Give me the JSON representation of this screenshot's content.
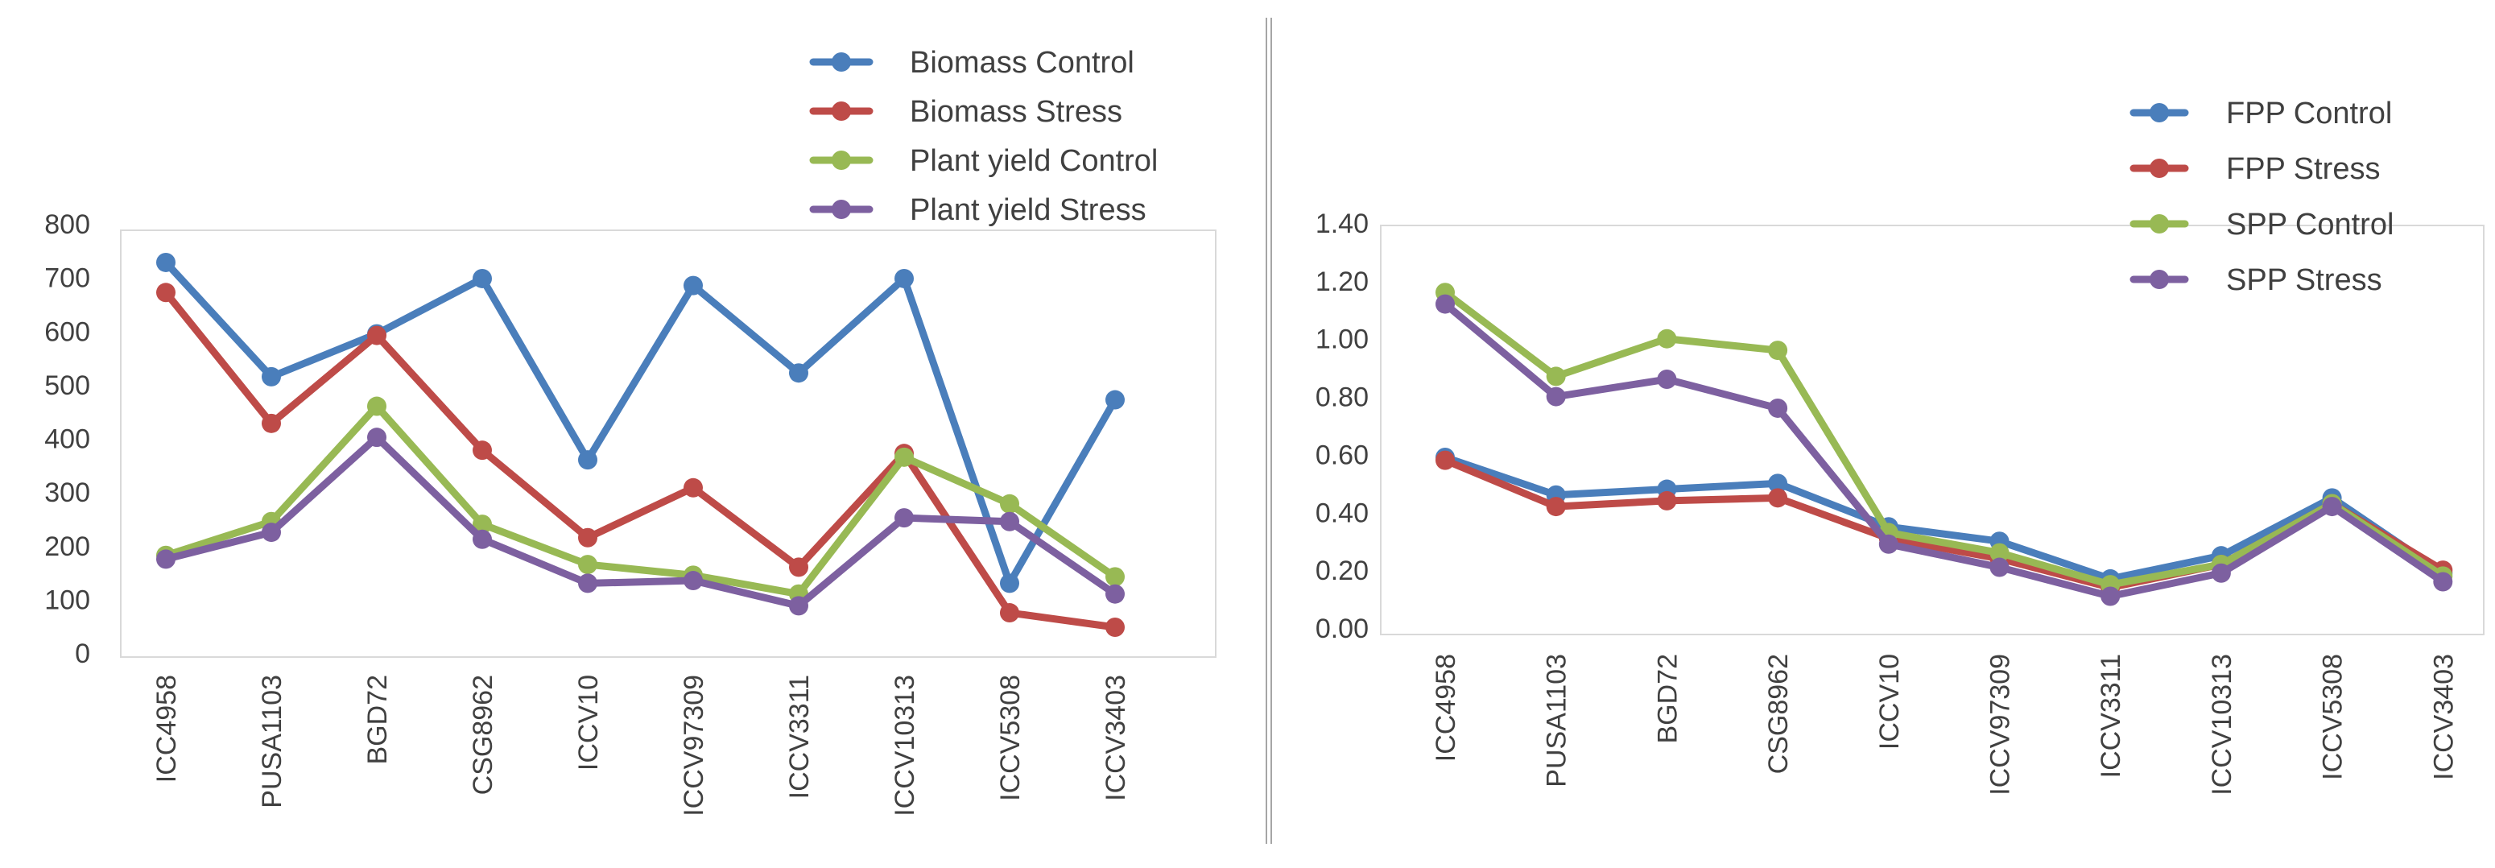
{
  "chart_data": [
    {
      "type": "line",
      "title": "",
      "xlabel": "",
      "ylabel": "",
      "ylim": [
        0,
        800
      ],
      "y_ticks": [
        "800",
        "700",
        "600",
        "500",
        "400",
        "300",
        "200",
        "100",
        "0"
      ],
      "categories": [
        "ICC4958",
        "PUSA1103",
        "BGD72",
        "CSG8962",
        "ICCV10",
        "ICCV97309",
        "ICCV3311",
        "ICCV10313",
        "ICCV5308",
        "ICCV3403"
      ],
      "legend_position": "top-right",
      "grid": false,
      "series": [
        {
          "name": "Biomass Control",
          "color": "#4A7EBB",
          "values": [
            728,
            515,
            595,
            698,
            360,
            685,
            522,
            698,
            130,
            472
          ]
        },
        {
          "name": "Biomass Stress",
          "color": "#BE4B48",
          "values": [
            672,
            428,
            592,
            378,
            215,
            308,
            160,
            372,
            75,
            48
          ]
        },
        {
          "name": "Plant yield Control",
          "color": "#98B954",
          "values": [
            182,
            245,
            460,
            240,
            165,
            145,
            110,
            365,
            278,
            142
          ]
        },
        {
          "name": "Plant yield Stress",
          "color": "#7D60A0",
          "values": [
            175,
            225,
            402,
            212,
            130,
            135,
            88,
            252,
            245,
            110
          ]
        }
      ]
    },
    {
      "type": "line",
      "title": "",
      "xlabel": "",
      "ylabel": "",
      "ylim": [
        0,
        1.4
      ],
      "y_ticks": [
        "1.40",
        "1.20",
        "1.00",
        "0.80",
        "0.60",
        "0.40",
        "0.20",
        "0.00"
      ],
      "categories": [
        "ICC4958",
        "PUSA1103",
        "BGD72",
        "CSG8962",
        "ICCV10",
        "ICCV97309",
        "ICCV3311",
        "ICCV10313",
        "ICCV5308",
        "ICCV3403"
      ],
      "legend_position": "top-right",
      "grid": false,
      "series": [
        {
          "name": "FPP Control",
          "color": "#4A7EBB",
          "values": [
            0.59,
            0.46,
            0.48,
            0.5,
            0.35,
            0.3,
            0.17,
            0.25,
            0.45,
            0.19
          ]
        },
        {
          "name": "FPP Stress",
          "color": "#BE4B48",
          "values": [
            0.58,
            0.42,
            0.44,
            0.45,
            0.31,
            0.24,
            0.14,
            0.22,
            0.43,
            0.2
          ]
        },
        {
          "name": "SPP Control",
          "color": "#98B954",
          "values": [
            1.16,
            0.87,
            1.0,
            0.96,
            0.33,
            0.26,
            0.15,
            0.22,
            0.43,
            0.18
          ]
        },
        {
          "name": "SPP Stress",
          "color": "#7D60A0",
          "values": [
            1.12,
            0.8,
            0.86,
            0.76,
            0.29,
            0.21,
            0.11,
            0.19,
            0.42,
            0.16
          ]
        }
      ]
    }
  ]
}
